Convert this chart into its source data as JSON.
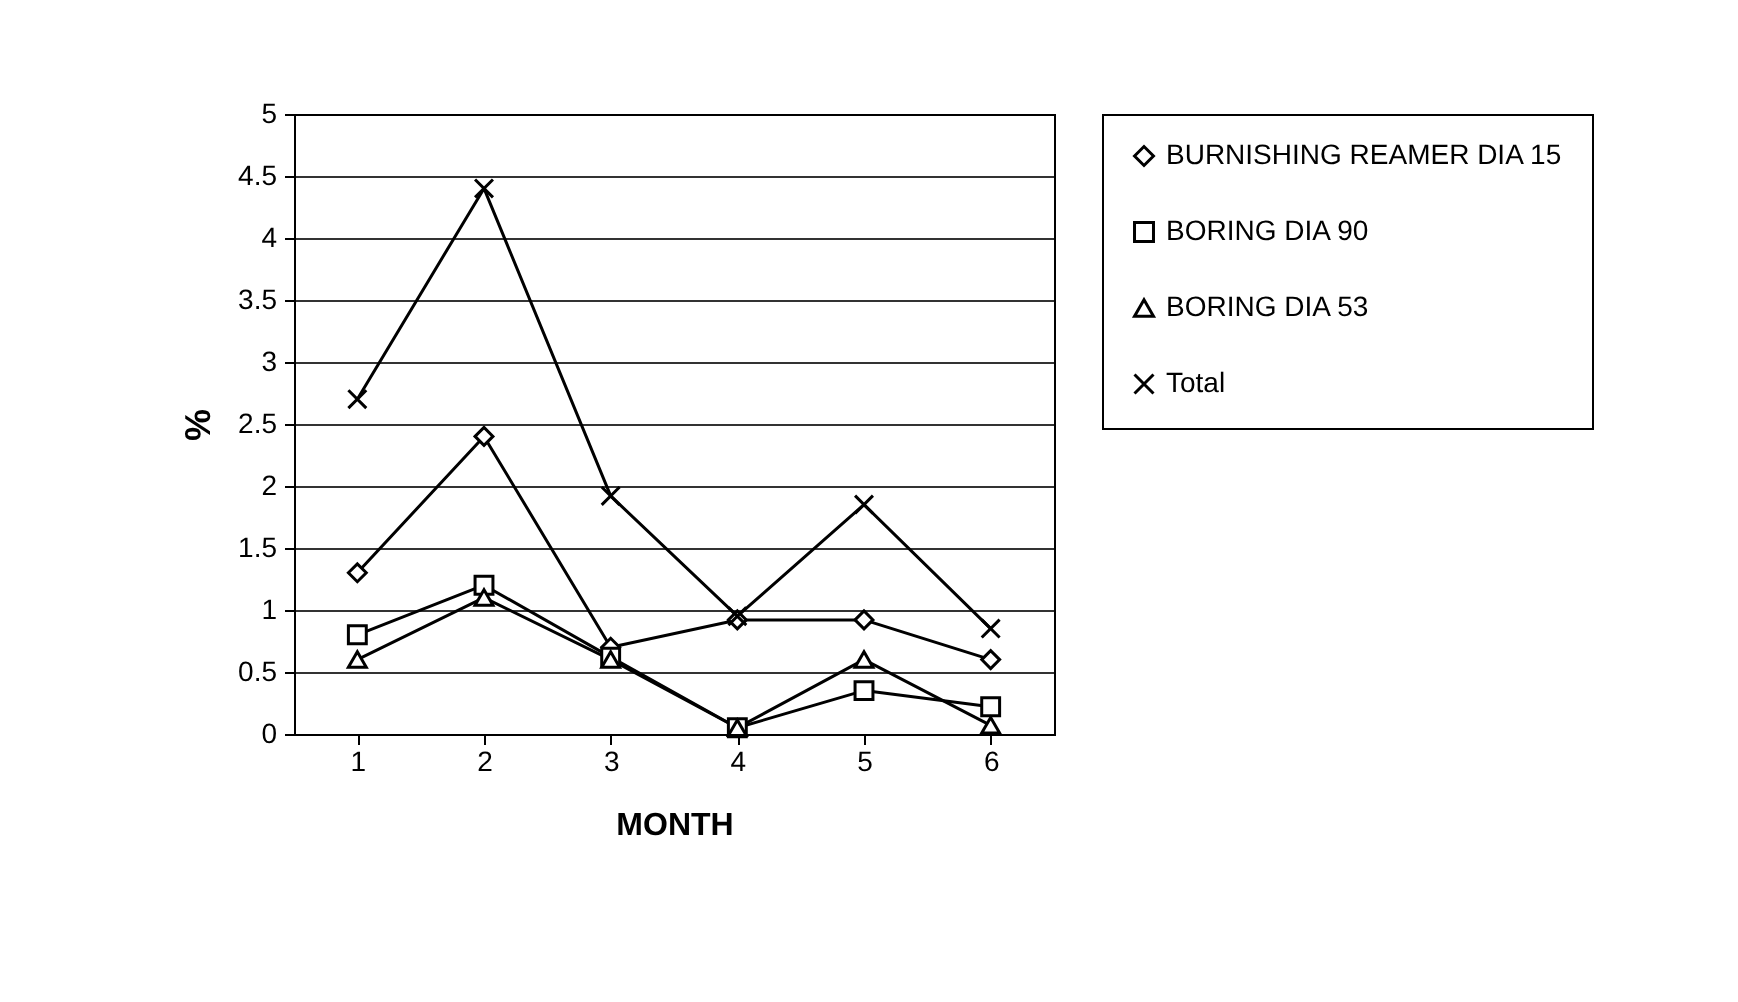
{
  "chart_data": {
    "type": "line",
    "xlabel": "MONTH",
    "ylabel": "%",
    "categories": [
      "1",
      "2",
      "3",
      "4",
      "5",
      "6"
    ],
    "series": [
      {
        "name": "BURNISHING REAMER DIA 15",
        "color": "#000000",
        "marker": "diamond",
        "values": [
          1.3,
          2.4,
          0.7,
          0.92,
          0.92,
          0.6
        ]
      },
      {
        "name": "BORING DIA 90",
        "color": "#000000",
        "marker": "square",
        "values": [
          0.8,
          1.2,
          0.62,
          0.05,
          0.35,
          0.22
        ]
      },
      {
        "name": "BORING DIA 53",
        "color": "#000000",
        "marker": "triangle",
        "values": [
          0.6,
          1.1,
          0.6,
          0.05,
          0.6,
          0.07
        ]
      },
      {
        "name": "Total",
        "color": "#000000",
        "marker": "cross",
        "values": [
          2.7,
          4.4,
          1.92,
          0.95,
          1.85,
          0.85
        ]
      }
    ],
    "ylim": [
      0,
      5
    ],
    "yticks": [
      0,
      0.5,
      1,
      1.5,
      2,
      2.5,
      3,
      3.5,
      4,
      4.5,
      5
    ],
    "grid": "y",
    "legend": "right",
    "line_style": "solid"
  }
}
